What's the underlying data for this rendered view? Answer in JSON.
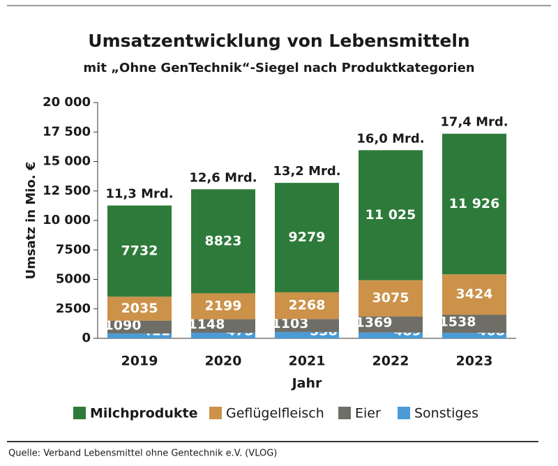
{
  "chart_data": {
    "type": "stacked_bar",
    "title": "Umsatzentwicklung von Lebensmitteln",
    "subtitle": "mit „Ohne GenTechnik“-Siegel nach Produktkategorien",
    "x_label": "Jahr",
    "y_label": "Umsatz in Mio. €",
    "categories": [
      "2019",
      "2020",
      "2021",
      "2022",
      "2023"
    ],
    "series": [
      {
        "name": "Sonstiges",
        "color": "#4b9bd6",
        "values": [
          411,
          475,
          538,
          489,
          468
        ]
      },
      {
        "name": "Eier",
        "color": "#6e6e67",
        "values": [
          1090,
          1148,
          1103,
          1369,
          1538
        ]
      },
      {
        "name": "Geflügelfleisch",
        "color": "#cc9249",
        "values": [
          2035,
          2199,
          2268,
          3075,
          3424
        ]
      },
      {
        "name": "Milchprodukte",
        "color": "#2e7a3a",
        "values": [
          7732,
          8823,
          9279,
          11025,
          11926
        ],
        "value_labels": [
          "7732",
          "8823",
          "9279",
          "11 025",
          "11 926"
        ]
      }
    ],
    "annotations": [
      "11,3 Mrd.",
      "12,6 Mrd.",
      "13,2 Mrd.",
      "16,0 Mrd.",
      "17,4 Mrd."
    ],
    "ylim": [
      0,
      20000
    ],
    "yticks": [
      0,
      2500,
      5000,
      7500,
      {
        "value": 10000,
        "label": "10 000"
      },
      {
        "value": 12500,
        "label": "12 500"
      },
      {
        "value": 15000,
        "label": "15 000"
      },
      {
        "value": 17500,
        "label": "17 500"
      },
      {
        "value": 20000,
        "label": "20 000"
      }
    ],
    "legend_order": [
      3,
      2,
      1,
      0
    ],
    "source": "Quelle: Verband Lebensmittel ohne Gentechnik e.V. (VLOG)"
  }
}
